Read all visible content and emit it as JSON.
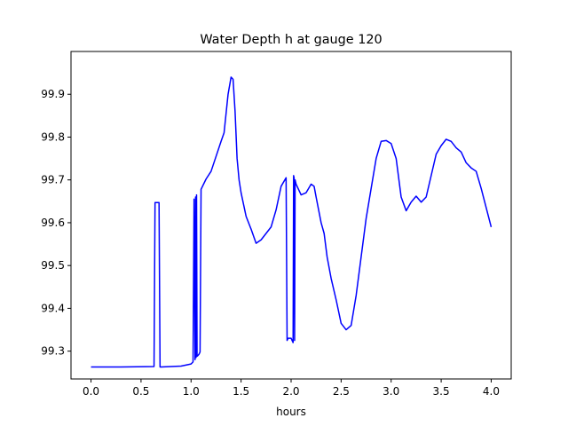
{
  "chart_data": {
    "type": "line",
    "title": "Water Depth h at gauge 120",
    "xlabel": "hours",
    "ylabel": "",
    "xlim": [
      -0.2,
      4.2
    ],
    "ylim": [
      99.235,
      100.0
    ],
    "grid": false,
    "x_ticks": [
      0.0,
      0.5,
      1.0,
      1.5,
      2.0,
      2.5,
      3.0,
      3.5,
      4.0
    ],
    "x_tick_labels": [
      "0.0",
      "0.5",
      "1.0",
      "1.5",
      "2.0",
      "2.5",
      "3.0",
      "3.5",
      "4.0"
    ],
    "y_ticks": [
      99.3,
      99.4,
      99.5,
      99.6,
      99.7,
      99.8,
      99.9
    ],
    "y_tick_labels": [
      "99.3",
      "99.4",
      "99.5",
      "99.6",
      "99.7",
      "99.8",
      "99.9"
    ],
    "series": [
      {
        "color": "#0000ff",
        "x": [
          0.0,
          0.3,
          0.63,
          0.64,
          0.66,
          0.68,
          0.69,
          0.7,
          0.9,
          1.0,
          1.02,
          1.03,
          1.04,
          1.045,
          1.05,
          1.055,
          1.06,
          1.07,
          1.08,
          1.09,
          1.1,
          1.15,
          1.2,
          1.25,
          1.3,
          1.33,
          1.37,
          1.4,
          1.42,
          1.44,
          1.46,
          1.48,
          1.5,
          1.55,
          1.6,
          1.65,
          1.7,
          1.75,
          1.8,
          1.85,
          1.9,
          1.95,
          1.96,
          1.97,
          1.98,
          2.0,
          2.02,
          2.025,
          2.03,
          2.035,
          2.04,
          2.045,
          2.05,
          2.1,
          2.15,
          2.2,
          2.23,
          2.25,
          2.3,
          2.33,
          2.36,
          2.4,
          2.45,
          2.5,
          2.55,
          2.6,
          2.65,
          2.7,
          2.75,
          2.8,
          2.85,
          2.9,
          2.95,
          3.0,
          3.05,
          3.1,
          3.15,
          3.2,
          3.25,
          3.3,
          3.35,
          3.4,
          3.45,
          3.5,
          3.55,
          3.6,
          3.65,
          3.7,
          3.75,
          3.8,
          3.85,
          3.9,
          3.95,
          4.0
        ],
        "y": [
          99.263,
          99.263,
          99.264,
          99.647,
          99.647,
          99.647,
          99.263,
          99.263,
          99.265,
          99.27,
          99.275,
          99.655,
          99.28,
          99.66,
          99.285,
          99.665,
          99.288,
          99.29,
          99.293,
          99.298,
          99.678,
          99.702,
          99.72,
          99.755,
          99.79,
          99.81,
          99.9,
          99.94,
          99.935,
          99.86,
          99.75,
          99.7,
          99.67,
          99.615,
          99.585,
          99.552,
          99.56,
          99.575,
          99.59,
          99.63,
          99.685,
          99.705,
          99.325,
          99.33,
          99.33,
          99.33,
          99.32,
          99.71,
          99.705,
          99.325,
          99.7,
          99.695,
          99.69,
          99.665,
          99.67,
          99.69,
          99.685,
          99.66,
          99.6,
          99.575,
          99.52,
          99.47,
          99.42,
          99.365,
          99.35,
          99.36,
          99.43,
          99.52,
          99.61,
          99.68,
          99.75,
          99.79,
          99.792,
          99.785,
          99.75,
          99.66,
          99.628,
          99.648,
          99.662,
          99.648,
          99.66,
          99.71,
          99.76,
          99.78,
          99.795,
          99.79,
          99.775,
          99.765,
          99.74,
          99.728,
          99.72,
          99.68,
          99.635,
          99.59
        ]
      }
    ]
  }
}
